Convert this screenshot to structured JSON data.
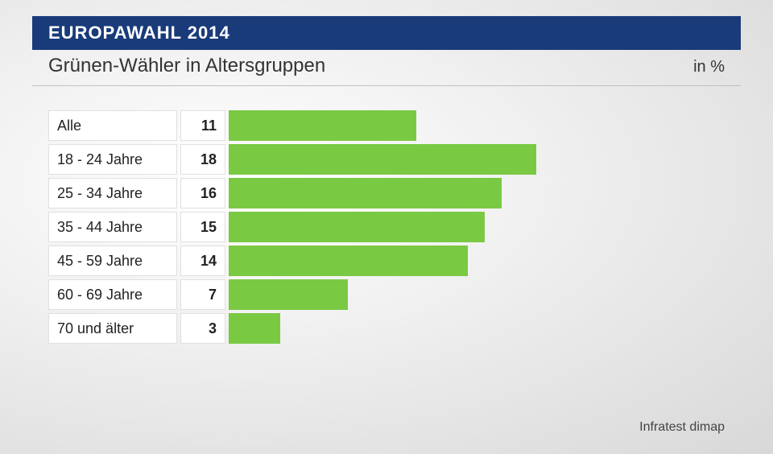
{
  "header": {
    "title": "EUROPAWAHL 2014",
    "subtitle": "Grünen-Wähler in Altersgruppen",
    "unit": "in %"
  },
  "chart": {
    "type": "bar",
    "bar_color": "#7ac943",
    "background_color": "#ffffff",
    "max_value": 30,
    "label_fontsize": 18,
    "value_fontsize": 18,
    "categories": [
      "Alle",
      "18 - 24 Jahre",
      "25 - 34 Jahre",
      "35 - 44 Jahre",
      "45 - 59 Jahre",
      "60 - 69 Jahre",
      "70 und älter"
    ],
    "values": [
      11,
      18,
      16,
      15,
      14,
      7,
      3
    ]
  },
  "source": "Infratest dimap"
}
